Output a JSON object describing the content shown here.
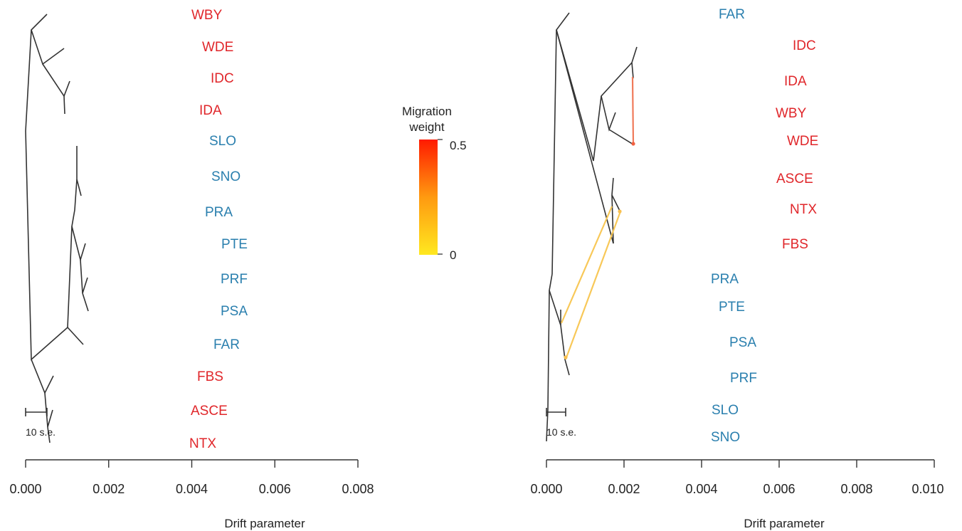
{
  "colors": {
    "group_red": "#e0262a",
    "group_blue": "#2a7fae",
    "edge": "#333333",
    "migration_high": "#ff2a00",
    "migration_low": "#ffe020"
  },
  "legend": {
    "title_line1": "Migration",
    "title_line2": "weight",
    "max_label": "0.5",
    "min_label": "0"
  },
  "left_tree": {
    "x_ticks": [
      "0.000",
      "0.002",
      "0.004",
      "0.006",
      "0.008"
    ],
    "x_label": "Drift parameter",
    "scale_label": "10 s.e.",
    "leaves": [
      {
        "label": "WBY",
        "group": "red"
      },
      {
        "label": "WDE",
        "group": "red"
      },
      {
        "label": "IDC",
        "group": "red"
      },
      {
        "label": "IDA",
        "group": "red"
      },
      {
        "label": "SLO",
        "group": "blue"
      },
      {
        "label": "SNO",
        "group": "blue"
      },
      {
        "label": "PRA",
        "group": "blue"
      },
      {
        "label": "PTE",
        "group": "blue"
      },
      {
        "label": "PRF",
        "group": "blue"
      },
      {
        "label": "PSA",
        "group": "blue"
      },
      {
        "label": "FAR",
        "group": "blue"
      },
      {
        "label": "FBS",
        "group": "red"
      },
      {
        "label": "ASCE",
        "group": "red"
      },
      {
        "label": "NTX",
        "group": "red"
      }
    ]
  },
  "right_tree": {
    "x_ticks": [
      "0.000",
      "0.002",
      "0.004",
      "0.006",
      "0.008",
      "0.010"
    ],
    "x_label": "Drift parameter",
    "scale_label": "10 s.e.",
    "leaves": [
      {
        "label": "FAR",
        "group": "blue"
      },
      {
        "label": "IDC",
        "group": "red"
      },
      {
        "label": "IDA",
        "group": "red"
      },
      {
        "label": "WBY",
        "group": "red"
      },
      {
        "label": "WDE",
        "group": "red"
      },
      {
        "label": "ASCE",
        "group": "red"
      },
      {
        "label": "NTX",
        "group": "red"
      },
      {
        "label": "FBS",
        "group": "red"
      },
      {
        "label": "PRA",
        "group": "blue"
      },
      {
        "label": "PTE",
        "group": "blue"
      },
      {
        "label": "PSA",
        "group": "blue"
      },
      {
        "label": "PRF",
        "group": "blue"
      },
      {
        "label": "SLO",
        "group": "blue"
      },
      {
        "label": "SNO",
        "group": "blue"
      }
    ],
    "migration_edges": [
      {
        "name": "migration-edge-wde",
        "weight": 0.4
      },
      {
        "name": "migration-edge-1",
        "weight": 0.1
      },
      {
        "name": "migration-edge-2",
        "weight": 0.1
      }
    ]
  }
}
